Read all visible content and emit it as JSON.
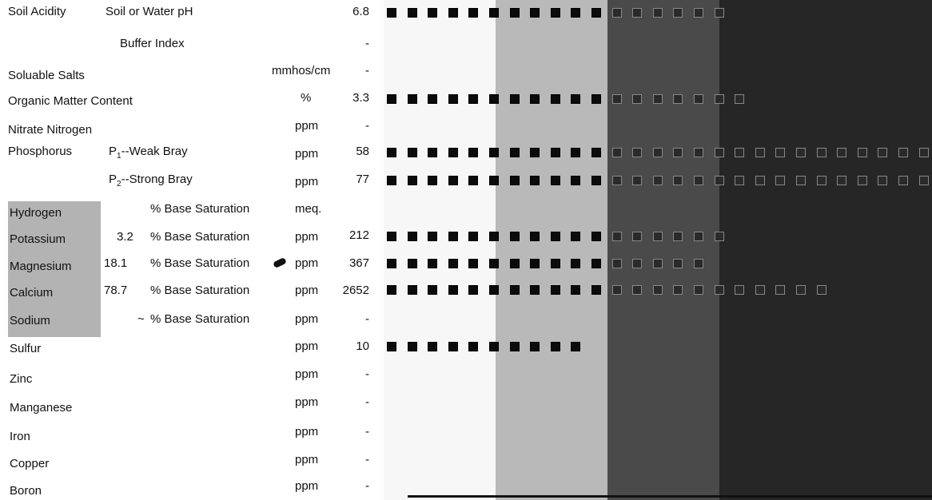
{
  "rows": [
    {
      "group": "Soil Acidity",
      "test": "Soil or Water pH",
      "unit": "",
      "value": "6.8",
      "bars": 17
    },
    {
      "group": "",
      "test": "Buffer Index",
      "unit": "",
      "value": "-",
      "bars": 0
    },
    {
      "group": "Soluable Salts",
      "test": "",
      "unit": "mmhos/cm",
      "value": "-",
      "bars": 0
    },
    {
      "group": "Organic Matter Content",
      "test": "",
      "unit": "%",
      "value": "3.3",
      "bars": 18
    },
    {
      "group": "Nitrate Nitrogen",
      "test": "",
      "unit": "ppm",
      "value": "-",
      "bars": 0
    },
    {
      "group": "Phosphorus",
      "test": "P1--Weak Bray",
      "unit": "ppm",
      "value": "58",
      "bars": 27
    },
    {
      "group": "",
      "test": "P2--Strong Bray",
      "unit": "ppm",
      "value": "77",
      "bars": 27
    },
    {
      "group": "Hydrogen",
      "test": "% Base Saturation",
      "pct": "",
      "unit": "meq.",
      "value": "",
      "bars": 0
    },
    {
      "group": "Potassium",
      "test": "% Base Saturation",
      "pct": "3.2",
      "unit": "ppm",
      "value": "212",
      "bars": 17
    },
    {
      "group": "Magnesium",
      "test": "% Base Saturation",
      "pct": "18.1",
      "unit": "ppm",
      "value": "367",
      "bars": 16
    },
    {
      "group": "Calcium",
      "test": "% Base Saturation",
      "pct": "78.7",
      "unit": "ppm",
      "value": "2652",
      "bars": 22
    },
    {
      "group": "Sodium",
      "test": "% Base Saturation",
      "pct": "~",
      "unit": "ppm",
      "value": "-",
      "bars": 0
    },
    {
      "group": "Sulfur",
      "test": "",
      "unit": "ppm",
      "value": "10",
      "bars": 10
    },
    {
      "group": "Zinc",
      "test": "",
      "unit": "ppm",
      "value": "-",
      "bars": 0
    },
    {
      "group": "Manganese",
      "test": "",
      "unit": "ppm",
      "value": "-",
      "bars": 0
    },
    {
      "group": "Iron",
      "test": "",
      "unit": "ppm",
      "value": "-",
      "bars": 0
    },
    {
      "group": "Copper",
      "test": "",
      "unit": "ppm",
      "value": "-",
      "bars": 0
    },
    {
      "group": "Boron",
      "test": "",
      "unit": "ppm",
      "value": "-",
      "bars": 0
    }
  ]
}
